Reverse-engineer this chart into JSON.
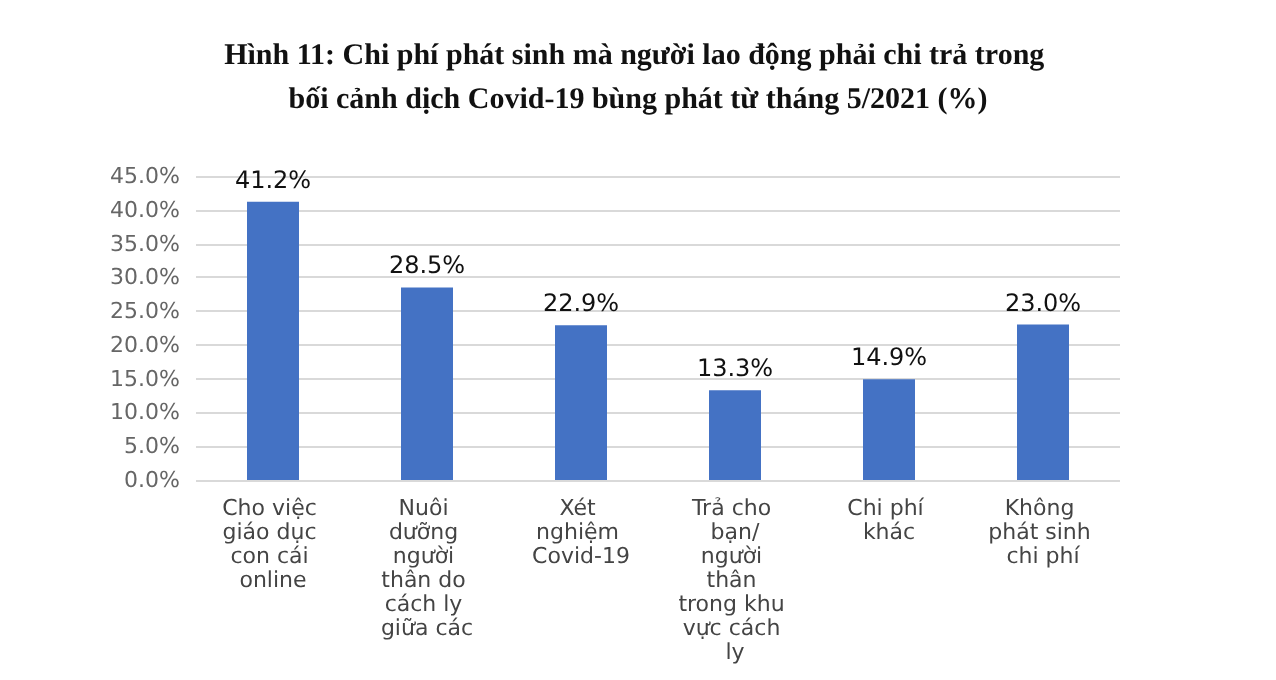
{
  "chart_data": {
    "type": "bar",
    "title": "Hình 11: Chi phí phát sinh mà người lao động phải chi trả trong bối cảnh dịch Covid-19 bùng phát từ tháng 5/2021 (%)",
    "categories": [
      "Cho việc giáo dục con cái online",
      "Nuôi dưỡng người thân do cách ly giữa các",
      "Xét nghiệm Covid-19",
      "Trả cho bạn/người thân trong khu vực cách ly",
      "Chi phí khác",
      "Không phát sinh chi phí"
    ],
    "values": [
      41.2,
      28.5,
      22.9,
      13.3,
      14.9,
      23.0
    ],
    "value_labels": [
      "41.2%",
      "28.5%",
      "22.9%",
      "13.3%",
      "14.9%",
      "23.0%"
    ],
    "color": "#4472c4",
    "ylim": [
      0,
      45
    ],
    "yticks": [
      {
        "value": 0,
        "label": "0.0%"
      },
      {
        "value": 5,
        "label": "5.0%"
      },
      {
        "value": 10,
        "label": "10.0%"
      },
      {
        "value": 15,
        "label": "15.0%"
      },
      {
        "value": 20,
        "label": "20.0%"
      },
      {
        "value": 25,
        "label": "25.0%"
      },
      {
        "value": 30,
        "label": "30.0%"
      },
      {
        "value": 35,
        "label": "35.0%"
      },
      {
        "value": 40,
        "label": "40.0%"
      },
      {
        "value": 45,
        "label": "45.0%"
      }
    ],
    "grid": "y"
  }
}
